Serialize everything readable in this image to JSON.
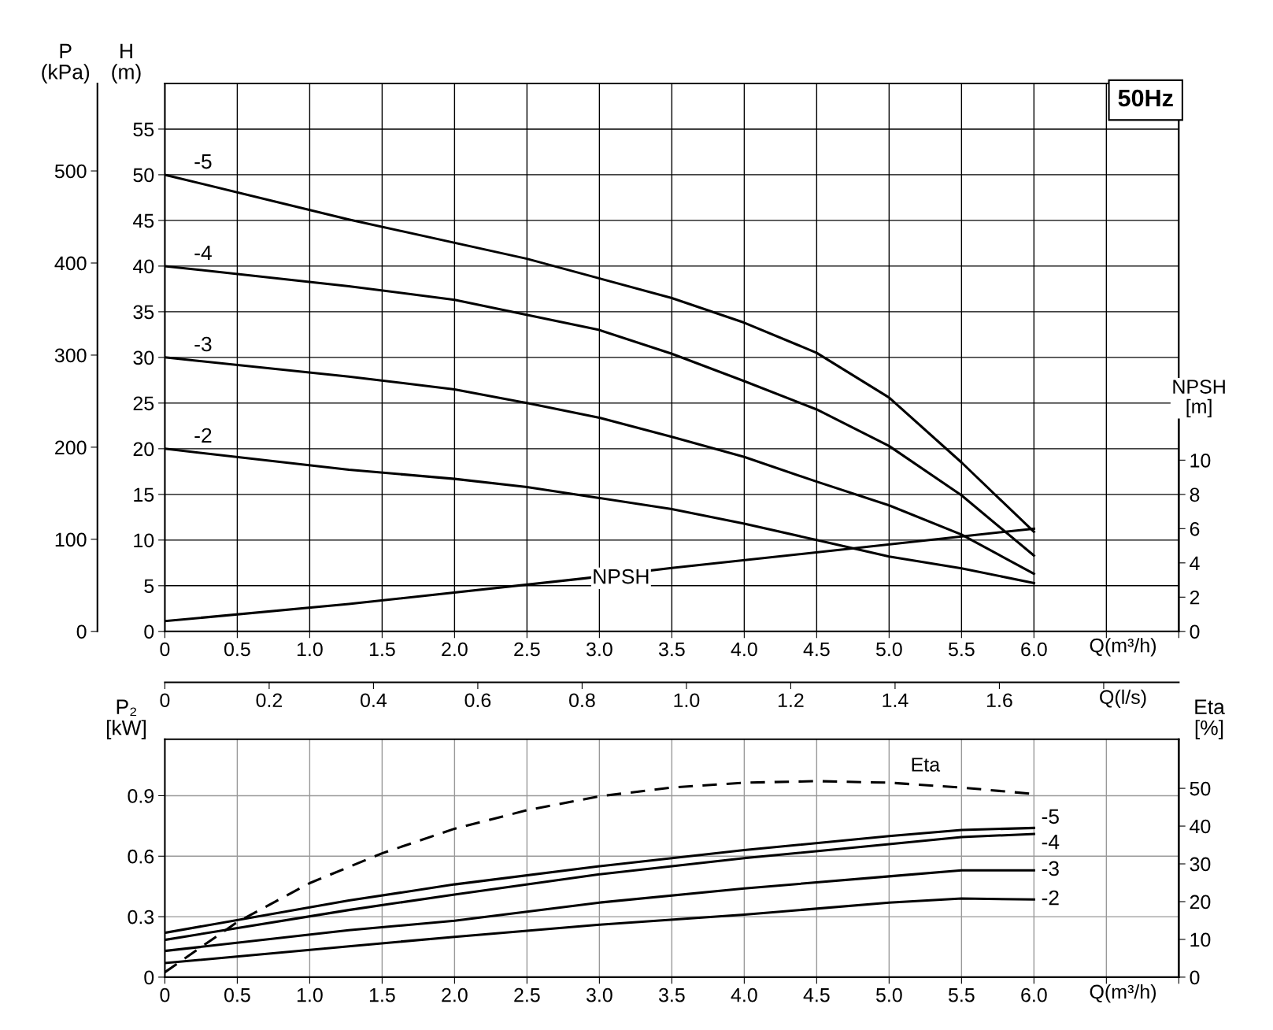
{
  "chart_data": [
    {
      "type": "line",
      "title": "50Hz",
      "xlabel": "Q(m³/h)",
      "x2label": "Q(l/s)",
      "ylabel": "H\n(m)",
      "y2label": "NPSH\n[m]",
      "y3label": "P\n(kPa)",
      "xlim": [
        0,
        7
      ],
      "xticks": [
        0,
        0.5,
        {
          "value": 1,
          "label": "1.0"
        },
        1.5,
        {
          "value": 2,
          "label": "2.0"
        },
        2.5,
        {
          "value": 3,
          "label": "3.0"
        },
        3.5,
        {
          "value": 4,
          "label": "4.0"
        },
        4.5,
        {
          "value": 5,
          "label": "5.0"
        },
        5.5,
        {
          "value": 6,
          "label": "6.0"
        },
        {
          "value": 6.5,
          "label": null
        },
        {
          "value": 7,
          "label": null
        }
      ],
      "x2lim": [
        0,
        1.944
      ],
      "x2ticks": [
        0,
        0.2,
        0.4,
        0.6,
        0.8,
        {
          "value": 1,
          "label": "1.0"
        },
        1.2,
        1.4,
        1.6,
        {
          "value": 1.8,
          "label": null
        }
      ],
      "ylim": [
        0,
        60
      ],
      "yticks": [
        0,
        5,
        10,
        15,
        20,
        25,
        30,
        35,
        40,
        45,
        50,
        55
      ],
      "y2lim": [
        0,
        32
      ],
      "y2ticks": [
        0,
        2,
        4,
        6,
        8,
        10
      ],
      "y3lim": [
        0,
        595
      ],
      "y3ticks": [
        0,
        100,
        200,
        300,
        400,
        500
      ],
      "grid": true,
      "legend": false,
      "marker": "none",
      "series": [
        {
          "name": "-5",
          "color": "#000000",
          "x": [
            0,
            1.27,
            2.5,
            3.5,
            4,
            4.5,
            5,
            5.5,
            6
          ],
          "values": [
            50,
            45.1,
            40.8,
            36.5,
            33.8,
            30.5,
            25.6,
            18.5,
            10.9
          ]
        },
        {
          "name": "-4",
          "color": "#000000",
          "x": [
            0,
            1.27,
            2,
            3,
            3.5,
            4,
            4.5,
            5,
            5.5,
            6
          ],
          "values": [
            40,
            37.8,
            36.3,
            33,
            30.4,
            27.4,
            24.3,
            20.3,
            14.9,
            8.3
          ]
        },
        {
          "name": "-3",
          "color": "#000000",
          "x": [
            0,
            1.27,
            2,
            2.5,
            3,
            3.5,
            4,
            4.5,
            5,
            5.5,
            6
          ],
          "values": [
            30,
            27.9,
            26.5,
            25,
            23.4,
            21.3,
            19.1,
            16.4,
            13.8,
            10.6,
            6.3
          ]
        },
        {
          "name": "-2",
          "color": "#000000",
          "x": [
            0,
            1.27,
            2,
            2.5,
            3,
            3.5,
            4,
            4.5,
            5,
            5.5,
            6
          ],
          "values": [
            20,
            17.7,
            16.7,
            15.8,
            14.6,
            13.4,
            11.8,
            10,
            8.2,
            6.9,
            5.3
          ]
        },
        {
          "name": "NPSH",
          "color": "#000000",
          "axis": "y2",
          "x": [
            0,
            1.27,
            2.9,
            3.5,
            6
          ],
          "values": [
            0.6,
            1.6,
            3.1,
            3.7,
            6.0
          ]
        }
      ]
    },
    {
      "type": "line",
      "xlabel": "Q(m³/h)",
      "ylabel": "P₂\n[kW]",
      "y2label": "Eta\n[%]",
      "xlim": [
        0,
        7
      ],
      "xticks": [
        0,
        0.5,
        {
          "value": 1,
          "label": "1.0"
        },
        1.5,
        {
          "value": 2,
          "label": "2.0"
        },
        2.5,
        {
          "value": 3,
          "label": "3.0"
        },
        3.5,
        {
          "value": 4,
          "label": "4.0"
        },
        4.5,
        {
          "value": 5,
          "label": "5.0"
        },
        5.5,
        {
          "value": 6,
          "label": "6.0"
        },
        {
          "value": 6.5,
          "label": null
        },
        {
          "value": 7,
          "label": null
        }
      ],
      "ylim": [
        0,
        1.18
      ],
      "yticks": [
        0,
        0.3,
        0.6,
        0.9
      ],
      "y2lim": [
        0,
        63
      ],
      "y2ticks": [
        0,
        10,
        20,
        30,
        40,
        50
      ],
      "grid": true,
      "legend": false,
      "marker": "none",
      "series": [
        {
          "name": "-5",
          "color": "#000000",
          "x": [
            0,
            1.27,
            2,
            3,
            4,
            5,
            5.5,
            6
          ],
          "values": [
            0.22,
            0.38,
            0.46,
            0.55,
            0.63,
            0.7,
            0.73,
            0.74
          ]
        },
        {
          "name": "-4",
          "color": "#000000",
          "x": [
            0,
            1.27,
            2,
            3,
            4,
            5,
            5.5,
            6
          ],
          "values": [
            0.185,
            0.333,
            0.41,
            0.51,
            0.59,
            0.66,
            0.695,
            0.71
          ]
        },
        {
          "name": "-3",
          "color": "#000000",
          "x": [
            0,
            1.27,
            2,
            3,
            4,
            5,
            5.5,
            6
          ],
          "values": [
            0.13,
            0.233,
            0.28,
            0.37,
            0.44,
            0.5,
            0.53,
            0.53
          ]
        },
        {
          "name": "-2",
          "color": "#000000",
          "x": [
            0,
            1.27,
            2,
            3,
            4,
            5,
            5.5,
            6
          ],
          "values": [
            0.07,
            0.153,
            0.2,
            0.26,
            0.31,
            0.37,
            0.39,
            0.385
          ]
        },
        {
          "name": "Eta",
          "color": "#000000",
          "axis": "y2",
          "line_style": "dashed",
          "x": [
            0,
            0.5,
            1,
            1.5,
            2,
            2.5,
            3,
            3.5,
            4,
            4.5,
            5,
            5.5,
            6
          ],
          "values": [
            1.3,
            14.6,
            24.9,
            32.8,
            39.3,
            44.2,
            47.9,
            50.2,
            51.5,
            51.9,
            51.5,
            50.2,
            48.5
          ]
        }
      ]
    }
  ]
}
